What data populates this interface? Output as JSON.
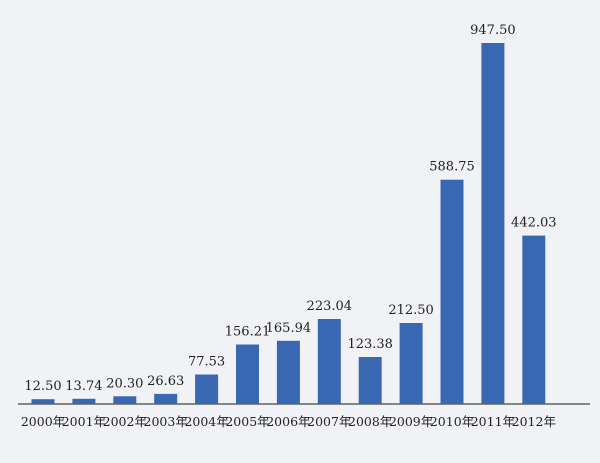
{
  "chart_data": {
    "type": "bar",
    "title": "",
    "xlabel": "",
    "ylabel": "",
    "categories": [
      "2000年",
      "2001年",
      "2002年",
      "2003年",
      "2004年",
      "2005年",
      "2006年",
      "2007年",
      "2008年",
      "2009年",
      "2010年",
      "2011年",
      "2012年"
    ],
    "values": [
      12.5,
      13.74,
      20.3,
      26.63,
      77.53,
      156.21,
      165.94,
      223.04,
      123.38,
      212.5,
      588.75,
      947.5,
      442.03
    ],
    "value_labels": [
      "12.50",
      "13.74",
      "20.30",
      "26.63",
      "77.53",
      "156.21",
      "165.94",
      "223.04",
      "123.38",
      "212.50",
      "588.75",
      "947.50",
      "442.03"
    ],
    "ylim": [
      0,
      1000
    ],
    "grid": false,
    "legend": "none",
    "colors": {
      "bar": "#3a67b2",
      "axis": "#444444",
      "background": "#f1f2f6"
    }
  }
}
